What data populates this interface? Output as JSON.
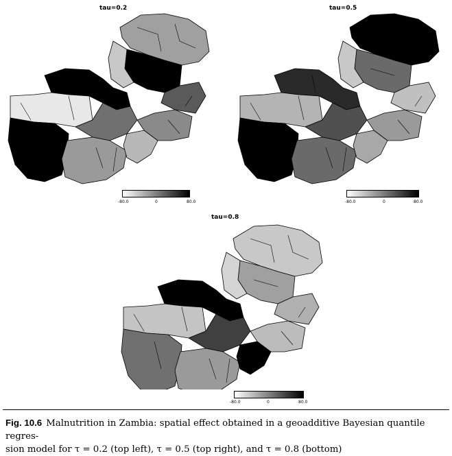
{
  "figure": {
    "label": "Fig. 10.6",
    "caption_line1": "Malnutrition in Zambia: spatial effect obtained in a geoadditive Bayesian quantile regres-",
    "caption_line2": "sion model for τ = 0.2 (top left), τ = 0.5 (top right), and τ = 0.8 (bottom)"
  },
  "maps": [
    {
      "title": "tau=0.2",
      "legend": {
        "min_label": "-80.0",
        "mid_label": "0",
        "max_label": "80.0"
      },
      "district_effects": [
        {
          "region": "northeast",
          "shade": "#a0a0a0"
        },
        {
          "region": "north-center",
          "shade": "#000000"
        },
        {
          "region": "luapula-north",
          "shade": "#c8c8c8"
        },
        {
          "region": "copperbelt",
          "shade": "#000000"
        },
        {
          "region": "northwest",
          "shade": "#e8e8e8"
        },
        {
          "region": "central",
          "shade": "#707070"
        },
        {
          "region": "western",
          "shade": "#000000"
        },
        {
          "region": "southern",
          "shade": "#9a9a9a"
        },
        {
          "region": "lusaka",
          "shade": "#b8b8b8"
        },
        {
          "region": "eastern",
          "shade": "#8a8a8a"
        },
        {
          "region": "muchinga",
          "shade": "#5a5a5a"
        }
      ]
    },
    {
      "title": "tau=0.5",
      "legend": {
        "min_label": "-80.0",
        "mid_label": "0",
        "max_label": "80.0"
      },
      "district_effects": [
        {
          "region": "northeast",
          "shade": "#000000"
        },
        {
          "region": "north-center",
          "shade": "#6a6a6a"
        },
        {
          "region": "luapula-north",
          "shade": "#c8c8c8"
        },
        {
          "region": "copperbelt",
          "shade": "#2a2a2a"
        },
        {
          "region": "northwest",
          "shade": "#b4b4b4"
        },
        {
          "region": "central",
          "shade": "#505050"
        },
        {
          "region": "western",
          "shade": "#000000"
        },
        {
          "region": "southern",
          "shade": "#6a6a6a"
        },
        {
          "region": "lusaka",
          "shade": "#a8a8a8"
        },
        {
          "region": "eastern",
          "shade": "#9a9a9a"
        },
        {
          "region": "muchinga",
          "shade": "#c0c0c0"
        }
      ]
    },
    {
      "title": "tau=0.8",
      "legend": {
        "min_label": "-80.0",
        "mid_label": "0",
        "max_label": "80.0"
      },
      "district_effects": [
        {
          "region": "northeast",
          "shade": "#c8c8c8"
        },
        {
          "region": "north-center",
          "shade": "#a0a0a0"
        },
        {
          "region": "luapula-north",
          "shade": "#d4d4d4"
        },
        {
          "region": "copperbelt",
          "shade": "#000000"
        },
        {
          "region": "northwest",
          "shade": "#c4c4c4"
        },
        {
          "region": "central",
          "shade": "#404040"
        },
        {
          "region": "western",
          "shade": "#707070"
        },
        {
          "region": "southern",
          "shade": "#9a9a9a"
        },
        {
          "region": "lusaka",
          "shade": "#000000"
        },
        {
          "region": "eastern",
          "shade": "#bcbcbc"
        },
        {
          "region": "muchinga",
          "shade": "#b0b0b0"
        }
      ]
    }
  ]
}
